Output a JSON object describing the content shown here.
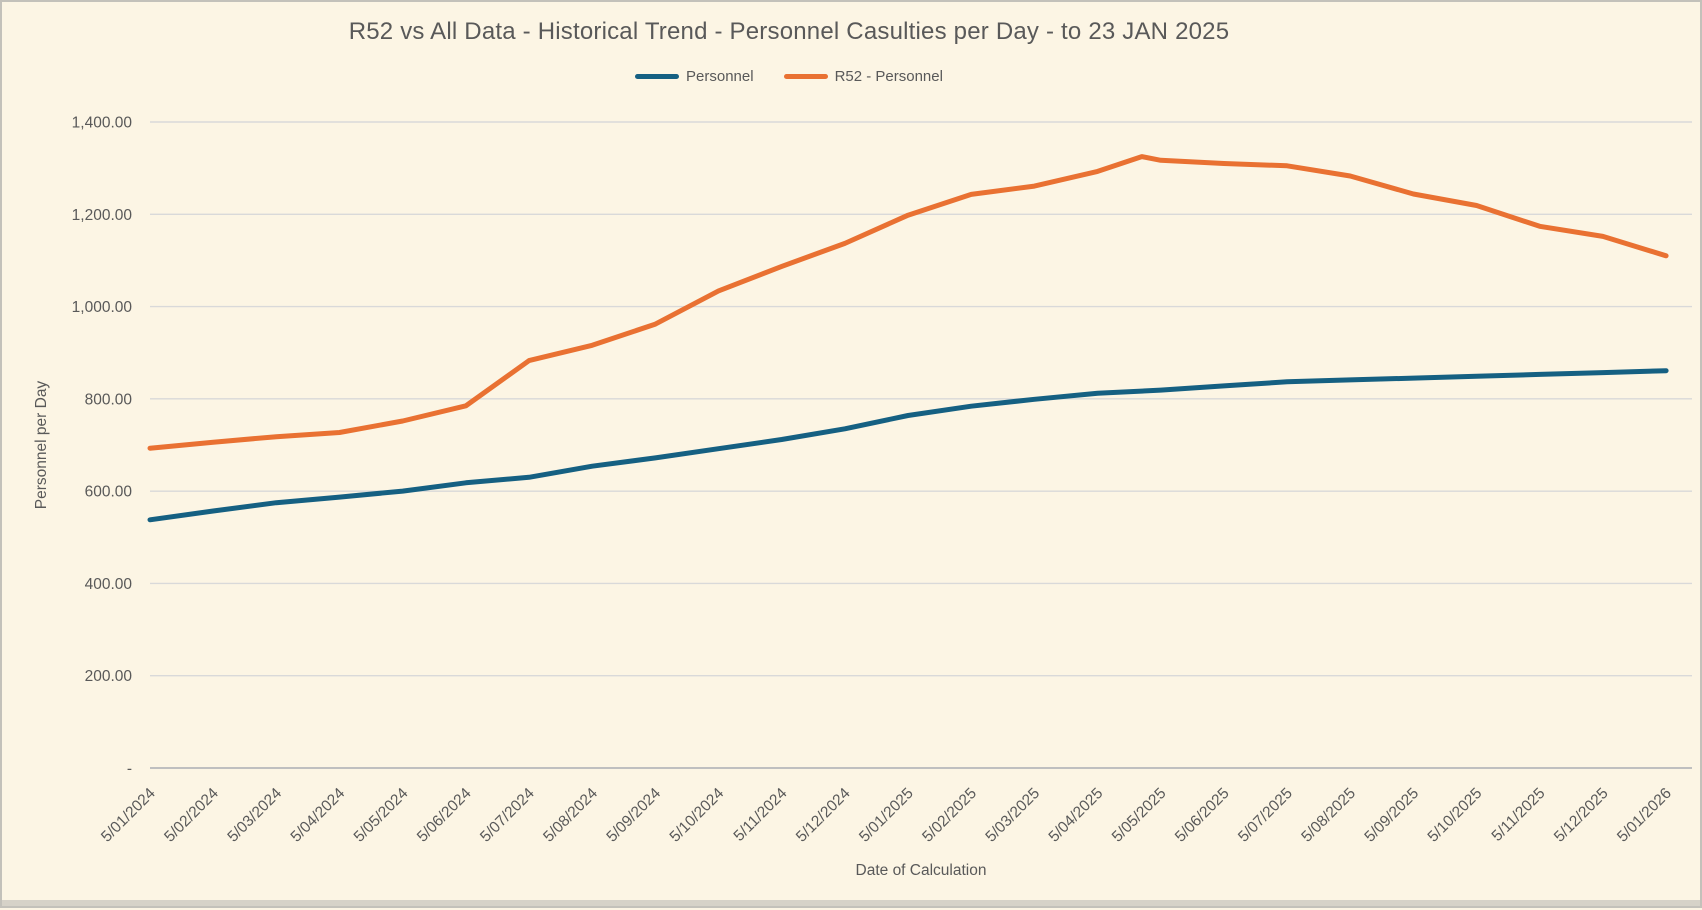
{
  "chart_data": {
    "type": "line",
    "title": "R52 vs All Data - Historical Trend - Personnel Casulties per Day - to 23 JAN 2025",
    "xlabel": "Date of Calculation",
    "ylabel": "Personnel per Day",
    "ylim": [
      0,
      1400
    ],
    "grid": true,
    "legend_position": "top-center",
    "background_color": "#fcf5e4",
    "gridline_color": "#d9d9d9",
    "axis_line_color": "#bfbfbf",
    "text_color": "#595959",
    "y_ticks": [
      {
        "value": 1400,
        "label": "1,400.00"
      },
      {
        "value": 1200,
        "label": "1,200.00"
      },
      {
        "value": 1000,
        "label": "1,000.00"
      },
      {
        "value": 800,
        "label": "800.00"
      },
      {
        "value": 600,
        "label": "600.00"
      },
      {
        "value": 400,
        "label": "400.00"
      },
      {
        "value": 200,
        "label": "200.00"
      },
      {
        "value": 0,
        "label": "-"
      }
    ],
    "categories": [
      "5/01/2024",
      "5/02/2024",
      "5/03/2024",
      "5/04/2024",
      "5/05/2024",
      "5/06/2024",
      "5/07/2024",
      "5/08/2024",
      "5/09/2024",
      "5/10/2024",
      "5/11/2024",
      "5/12/2024",
      "5/01/2025",
      "5/02/2025",
      "5/03/2025",
      "5/04/2025",
      "5/05/2025",
      "5/06/2025",
      "5/07/2025",
      "5/08/2025",
      "5/09/2025",
      "5/10/2025",
      "5/11/2025",
      "5/12/2025",
      "5/01/2026"
    ],
    "series": [
      {
        "name": "Personnel",
        "color": "#156082",
        "points": [
          [
            0,
            538
          ],
          [
            1,
            557
          ],
          [
            2,
            575
          ],
          [
            3,
            587
          ],
          [
            4,
            600
          ],
          [
            5,
            618
          ],
          [
            6,
            630
          ],
          [
            7,
            654
          ],
          [
            8,
            672
          ],
          [
            9,
            692
          ],
          [
            10,
            712
          ],
          [
            11,
            735
          ],
          [
            12,
            764
          ],
          [
            13,
            784
          ],
          [
            14,
            799
          ],
          [
            15,
            812
          ],
          [
            16,
            819
          ],
          [
            17,
            828
          ],
          [
            18,
            837
          ],
          [
            19,
            841
          ],
          [
            20,
            845
          ],
          [
            21,
            849
          ],
          [
            22,
            853
          ],
          [
            23,
            857
          ],
          [
            24,
            861
          ]
        ]
      },
      {
        "name": "R52 - Personnel",
        "color": "#e97132",
        "points": [
          [
            0,
            693
          ],
          [
            1,
            706
          ],
          [
            2,
            718
          ],
          [
            3,
            727
          ],
          [
            4,
            752
          ],
          [
            5,
            785
          ],
          [
            6,
            883
          ],
          [
            7,
            916
          ],
          [
            8,
            962
          ],
          [
            9,
            1034
          ],
          [
            10,
            1087
          ],
          [
            11,
            1137
          ],
          [
            12,
            1198
          ],
          [
            13,
            1243
          ],
          [
            14,
            1261
          ],
          [
            15,
            1293
          ],
          [
            15.7,
            1325
          ],
          [
            16,
            1317
          ],
          [
            17,
            1310
          ],
          [
            18,
            1305
          ],
          [
            19,
            1283
          ],
          [
            20,
            1244
          ],
          [
            21,
            1219
          ],
          [
            22,
            1174
          ],
          [
            23,
            1152
          ],
          [
            24,
            1110
          ]
        ]
      }
    ]
  }
}
